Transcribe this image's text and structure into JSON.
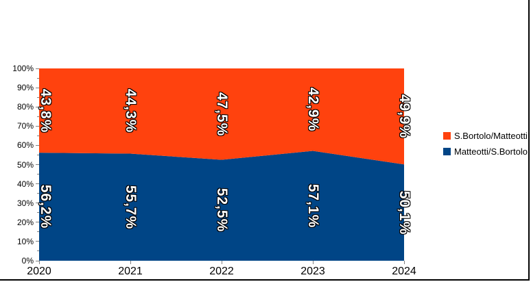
{
  "chart_data": {
    "type": "area",
    "stacking": "percent",
    "title": "",
    "x_labels": [
      "2020",
      "2021",
      "2022",
      "2023",
      "2024"
    ],
    "y_axis": {
      "min": 0,
      "max": 100,
      "major_step": 10,
      "minor_step": 5,
      "tick_labels": [
        "0%",
        "10%",
        "20%",
        "30%",
        "40%",
        "50%",
        "60%",
        "70%",
        "80%",
        "90%",
        "100%"
      ]
    },
    "grid": false,
    "legend_position": "right",
    "series": [
      {
        "name": "Matteotti/S.Bortolo",
        "color": "#004586",
        "values": [
          56.2,
          55.7,
          52.5,
          57.1,
          50.1
        ],
        "data_labels": [
          "56,2%",
          "55,7%",
          "52,5%",
          "57,1%",
          "50,1%"
        ]
      },
      {
        "name": "S.Bortolo/Matteotti",
        "color": "#FF420E",
        "values": [
          43.8,
          44.3,
          47.5,
          42.9,
          49.9
        ],
        "data_labels": [
          "43,8%",
          "44,3%",
          "47,5%",
          "42,9%",
          "49,9%"
        ]
      }
    ]
  },
  "legend": {
    "items": [
      {
        "label": "S.Bortolo/Matteotti",
        "color": "#FF420E"
      },
      {
        "label": "Matteotti/S.Bortolo",
        "color": "#004586"
      }
    ]
  }
}
